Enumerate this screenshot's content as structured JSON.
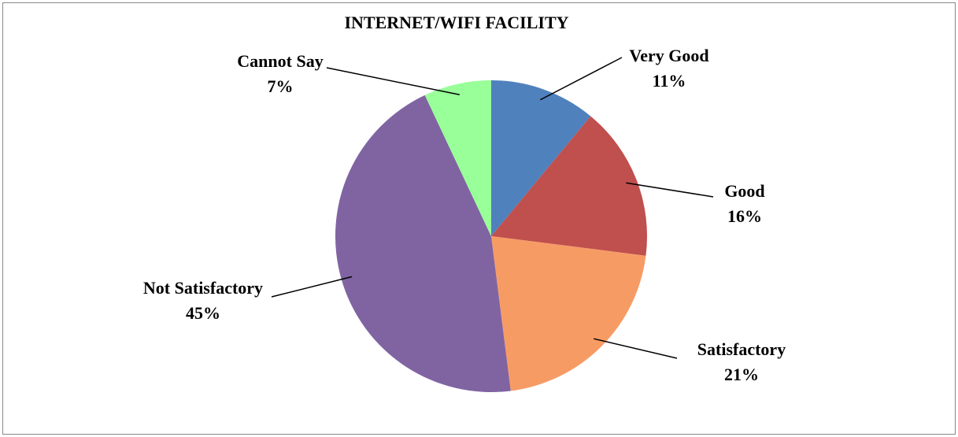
{
  "chart_data": {
    "type": "pie",
    "title": "INTERNET/WIFI FACILITY",
    "categories": [
      "Very Good",
      "Good",
      "Satisfactory",
      "Not Satisfactory",
      "Cannot Say"
    ],
    "values": [
      11,
      16,
      21,
      45,
      7
    ],
    "value_labels": [
      "11%",
      "16%",
      "21%",
      "45%",
      "7%"
    ],
    "colors": [
      "#4f81bd",
      "#c0504d",
      "#f79b65",
      "#8064a2",
      "#99ff99"
    ]
  }
}
